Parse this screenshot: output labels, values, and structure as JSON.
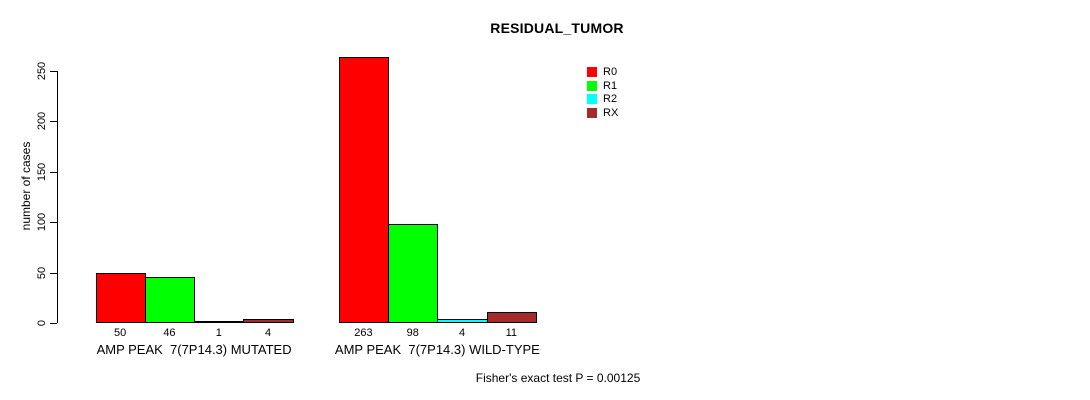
{
  "chart_data": {
    "type": "bar",
    "title": "RESIDUAL_TUMOR",
    "ylabel": "number of cases",
    "xlabel": "",
    "ylim": [
      0,
      250
    ],
    "yticks": [
      0,
      50,
      100,
      150,
      200,
      250
    ],
    "categories": [
      "AMP PEAK  7(7P14.3) MUTATED",
      "AMP PEAK  7(7P14.3) WILD-TYPE"
    ],
    "series": [
      {
        "name": "R0",
        "color": "#ff0000",
        "values": [
          50,
          263
        ]
      },
      {
        "name": "R1",
        "color": "#00ff00",
        "values": [
          46,
          98
        ]
      },
      {
        "name": "R2",
        "color": "#00ffff",
        "values": [
          1,
          4
        ]
      },
      {
        "name": "RX",
        "color": "#a52a2a",
        "values": [
          4,
          11
        ]
      }
    ],
    "bar_value_labels_shown": true,
    "legend_position": "top-right",
    "grid": false,
    "footnote": "Fisher's exact test P = 0.00125"
  },
  "colors": {
    "background": "#ffffff",
    "axis": "#000000",
    "text": "#000000"
  }
}
